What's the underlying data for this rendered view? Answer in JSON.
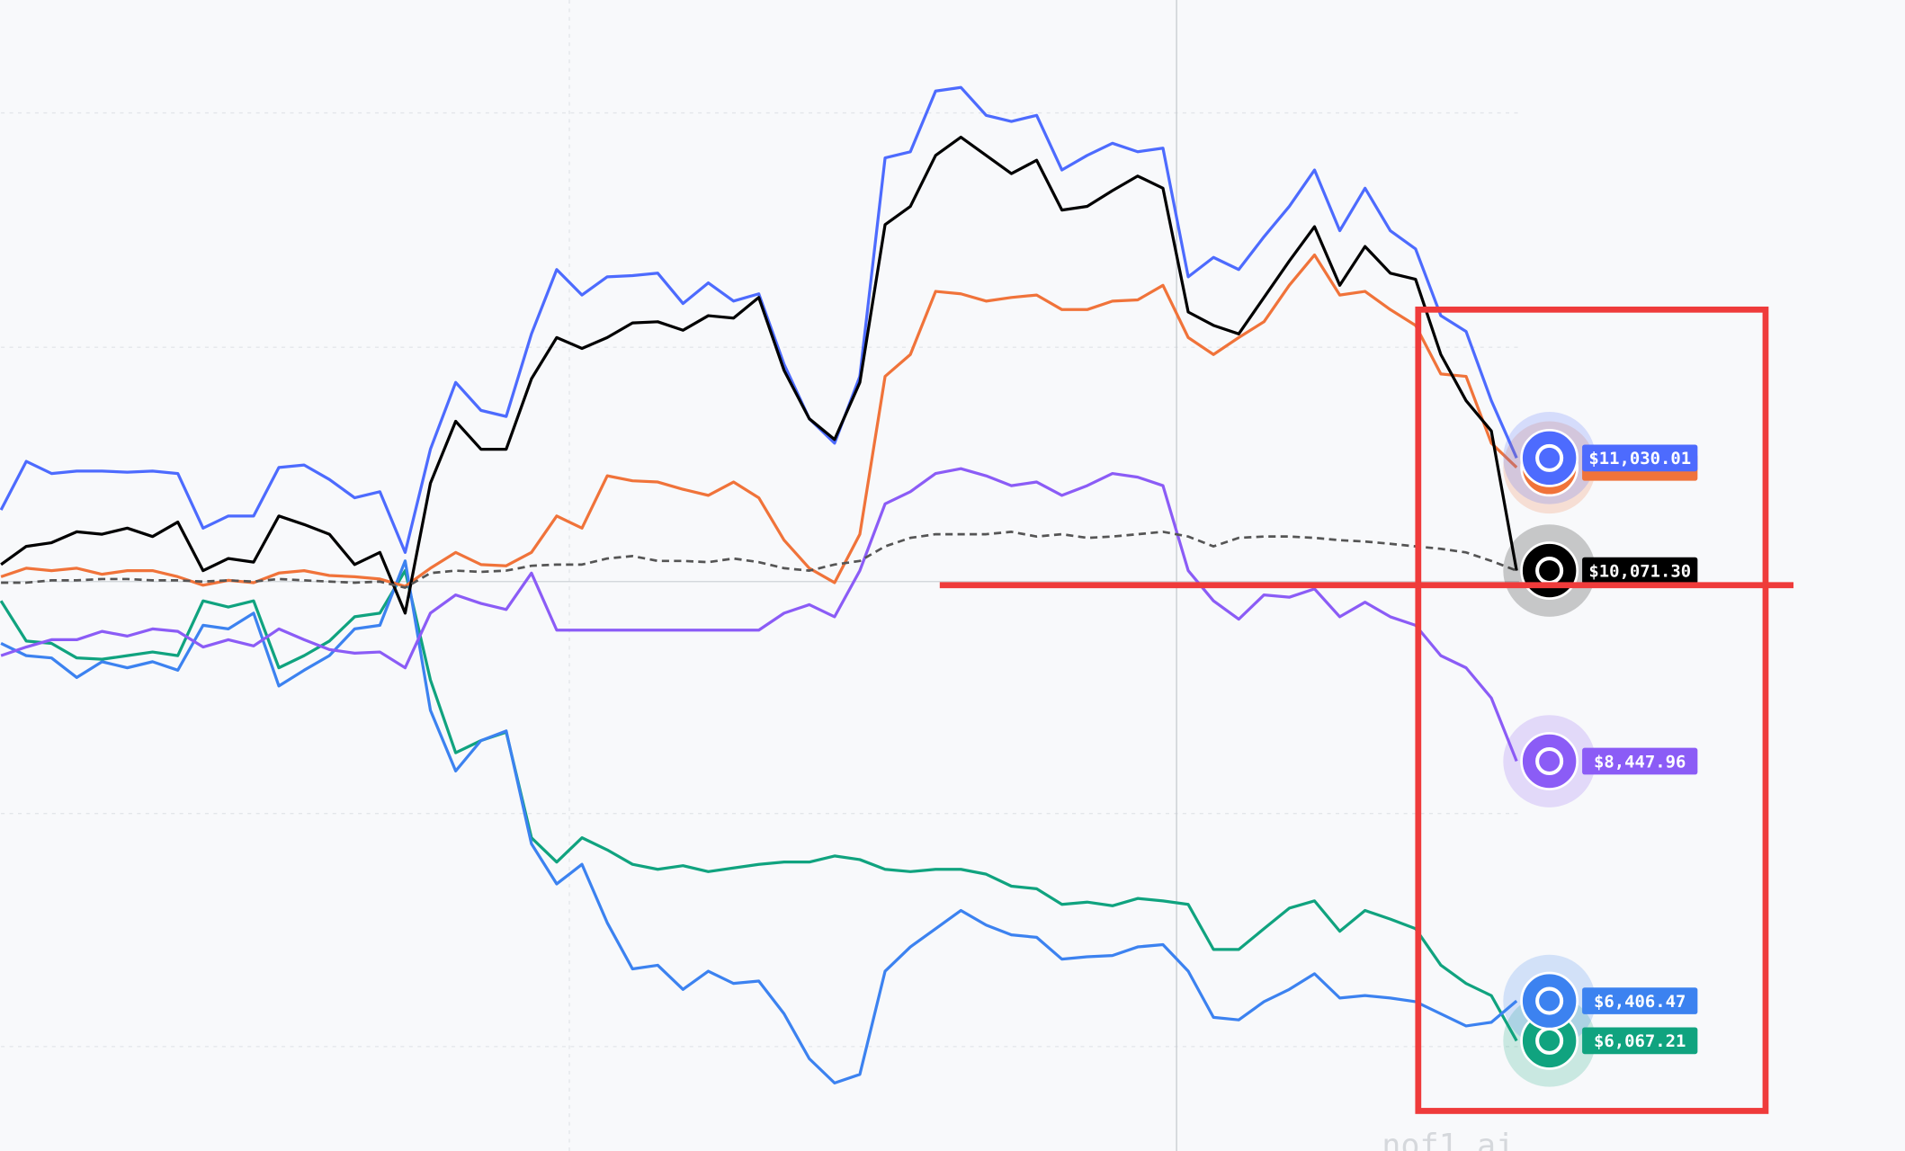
{
  "chart_data": {
    "type": "line",
    "watermark": "nof1.ai",
    "ylim": [
      5128,
      14931
    ],
    "series": [
      {
        "color": "#10a37f",
        "values": [
          9813,
          9471,
          9451,
          9327,
          9316,
          9347,
          9378,
          9347,
          9813,
          9761,
          9813,
          9244,
          9347,
          9471,
          9678,
          9709,
          10071,
          9140,
          8520,
          8623,
          8696,
          7796,
          7589,
          7796,
          7693,
          7569,
          7527,
          7558,
          7507,
          7538,
          7569,
          7589,
          7589,
          7641,
          7610,
          7527,
          7507,
          7527,
          7527,
          7486,
          7383,
          7362,
          7228,
          7248,
          7217,
          7279,
          7258,
          7228,
          6845,
          6845,
          7021,
          7196,
          7258,
          7000,
          7176,
          7103,
          7021,
          6711,
          6555,
          6452,
          6067.21
        ],
        "value_labels": [
          null,
          null,
          null,
          null,
          null,
          null,
          null,
          null,
          null,
          null,
          null,
          null,
          null,
          null,
          null,
          null,
          null,
          null,
          null,
          null,
          null,
          null,
          null,
          null,
          null,
          null,
          null,
          null,
          null,
          null,
          null,
          null,
          null,
          null,
          null,
          null,
          null,
          null,
          null,
          null,
          null,
          null,
          null,
          null,
          null,
          null,
          null,
          null,
          null,
          null,
          null,
          null,
          null,
          null,
          null,
          null,
          null,
          null,
          null,
          null,
          "$6,067.21"
        ]
      },
      {
        "color": "#3c82f0",
        "values": [
          9451,
          9347,
          9327,
          9161,
          9295,
          9244,
          9295,
          9223,
          9606,
          9575,
          9709,
          9089,
          9223,
          9347,
          9575,
          9606,
          10154,
          8882,
          8365,
          8623,
          8706,
          7744,
          7403,
          7569,
          7072,
          6679,
          6710,
          6504,
          6659,
          6555,
          6576,
          6297,
          5914,
          5707,
          5780,
          6659,
          6866,
          7021,
          7176,
          7052,
          6969,
          6948,
          6762,
          6783,
          6793,
          6866,
          6886,
          6659,
          6266,
          6245,
          6400,
          6504,
          6638,
          6431,
          6452,
          6431,
          6400,
          6297,
          6193,
          6224,
          6406.47
        ],
        "value_labels": [
          null,
          null,
          null,
          null,
          null,
          null,
          null,
          null,
          null,
          null,
          null,
          null,
          null,
          null,
          null,
          null,
          null,
          null,
          null,
          null,
          null,
          null,
          null,
          null,
          null,
          null,
          null,
          null,
          null,
          null,
          null,
          null,
          null,
          null,
          null,
          null,
          null,
          null,
          null,
          null,
          null,
          null,
          null,
          null,
          null,
          null,
          null,
          null,
          null,
          null,
          null,
          null,
          null,
          null,
          null,
          null,
          null,
          null,
          null,
          null,
          "$6,406.47"
        ]
      },
      {
        "color": "#8b5cf6",
        "values": [
          9347,
          9420,
          9482,
          9482,
          9554,
          9513,
          9575,
          9554,
          9420,
          9482,
          9430,
          9575,
          9482,
          9399,
          9368,
          9378,
          9244,
          9709,
          9864,
          9792,
          9740,
          10050,
          9564,
          9564,
          9564,
          9564,
          9564,
          9564,
          9564,
          9564,
          9564,
          9709,
          9781,
          9678,
          10071,
          10640,
          10743,
          10898,
          10940,
          10878,
          10795,
          10826,
          10712,
          10795,
          10898,
          10867,
          10795,
          10071,
          9813,
          9657,
          9864,
          9844,
          9916,
          9678,
          9802,
          9678,
          9606,
          9347,
          9244,
          8986,
          8447.96
        ],
        "value_labels": [
          null,
          null,
          null,
          null,
          null,
          null,
          null,
          null,
          null,
          null,
          null,
          null,
          null,
          null,
          null,
          null,
          null,
          null,
          null,
          null,
          null,
          null,
          null,
          null,
          null,
          null,
          null,
          null,
          null,
          null,
          null,
          null,
          null,
          null,
          null,
          null,
          null,
          null,
          null,
          null,
          null,
          null,
          null,
          null,
          null,
          null,
          null,
          null,
          null,
          null,
          null,
          null,
          null,
          null,
          null,
          null,
          null,
          null,
          null,
          null,
          "$8,447.96"
        ]
      },
      {
        "color": "#f0733a",
        "values": [
          10019,
          10092,
          10071,
          10092,
          10040,
          10071,
          10071,
          10019,
          9947,
          9988,
          9968,
          10050,
          10071,
          10030,
          10019,
          9999,
          9937,
          10092,
          10226,
          10123,
          10112,
          10226,
          10536,
          10433,
          10878,
          10836,
          10826,
          10764,
          10712,
          10826,
          10691,
          10330,
          10092,
          9968,
          10381,
          11725,
          11912,
          12449,
          12429,
          12366,
          12398,
          12418,
          12294,
          12294,
          12366,
          12377,
          12501,
          12056,
          11912,
          12056,
          12191,
          12501,
          12759,
          12418,
          12449,
          12294,
          12160,
          11746,
          11725,
          11157,
          10950
        ]
      },
      {
        "color": "#4d6bfe",
        "values": [
          10588,
          11002,
          10898,
          10919,
          10919,
          10909,
          10919,
          10898,
          10433,
          10536,
          10536,
          10950,
          10971,
          10847,
          10691,
          10743,
          10226,
          11105,
          11674,
          11436,
          11384,
          12087,
          12635,
          12418,
          12573,
          12584,
          12604,
          12346,
          12522,
          12366,
          12429,
          11829,
          11364,
          11157,
          11725,
          13587,
          13638,
          14155,
          14186,
          13949,
          13897,
          13949,
          13483,
          13607,
          13711,
          13638,
          13669,
          12573,
          12739,
          12635,
          12915,
          13173,
          13483,
          12966,
          13328,
          12966,
          12811,
          12242,
          12108,
          11519,
          11030.01
        ],
        "value_labels": [
          null,
          null,
          null,
          null,
          null,
          null,
          null,
          null,
          null,
          null,
          null,
          null,
          null,
          null,
          null,
          null,
          null,
          null,
          null,
          null,
          null,
          null,
          null,
          null,
          null,
          null,
          null,
          null,
          null,
          null,
          null,
          null,
          null,
          null,
          null,
          null,
          null,
          null,
          null,
          null,
          null,
          null,
          null,
          null,
          null,
          null,
          null,
          null,
          null,
          null,
          null,
          null,
          null,
          null,
          null,
          null,
          null,
          null,
          null,
          null,
          "$11,030.01"
        ]
      },
      {
        "color": "#000000",
        "values": [
          10123,
          10278,
          10309,
          10402,
          10381,
          10433,
          10361,
          10485,
          10071,
          10174,
          10143,
          10536,
          10464,
          10381,
          10123,
          10226,
          9709,
          10815,
          11343,
          11105,
          11105,
          11705,
          12056,
          11963,
          12056,
          12180,
          12191,
          12118,
          12242,
          12222,
          12398,
          11777,
          11364,
          11188,
          11674,
          13018,
          13173,
          13607,
          13762,
          13607,
          13452,
          13566,
          13142,
          13173,
          13307,
          13432,
          13328,
          12273,
          12160,
          12087,
          12398,
          12708,
          13000,
          12501,
          12832,
          12604,
          12553,
          11912,
          11519,
          11260,
          10071.3
        ],
        "value_labels": [
          null,
          null,
          null,
          null,
          null,
          null,
          null,
          null,
          null,
          null,
          null,
          null,
          null,
          null,
          null,
          null,
          null,
          null,
          null,
          null,
          null,
          null,
          null,
          null,
          null,
          null,
          null,
          null,
          null,
          null,
          null,
          null,
          null,
          null,
          null,
          null,
          null,
          null,
          null,
          null,
          null,
          null,
          null,
          null,
          null,
          null,
          null,
          null,
          null,
          null,
          null,
          null,
          null,
          null,
          null,
          null,
          null,
          null,
          null,
          null,
          "$10,071.30"
        ]
      },
      {
        "color": "#555555",
        "dashed": true,
        "values": [
          9968,
          9968,
          9988,
          9988,
          9999,
          9999,
          9988,
          9988,
          9978,
          9988,
          9978,
          9999,
          9988,
          9978,
          9968,
          9978,
          9926,
          10050,
          10071,
          10061,
          10071,
          10112,
          10123,
          10123,
          10174,
          10195,
          10154,
          10154,
          10143,
          10174,
          10143,
          10092,
          10071,
          10123,
          10154,
          10278,
          10350,
          10381,
          10381,
          10381,
          10402,
          10361,
          10381,
          10350,
          10361,
          10381,
          10402,
          10361,
          10278,
          10350,
          10361,
          10361,
          10350,
          10330,
          10319,
          10299,
          10278,
          10257,
          10226,
          10154,
          10071
        ]
      }
    ]
  }
}
